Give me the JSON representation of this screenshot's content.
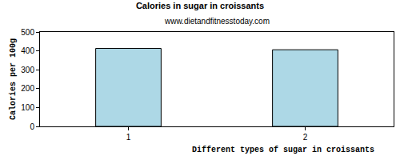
{
  "chart_data": {
    "type": "bar",
    "title": "Calories in sugar in croissants",
    "subtitle": "www.dietandfitnesstoday.com",
    "x_label": "Different types of sugar in croissants",
    "y_label": "Calories per 100g",
    "categories": [
      "1",
      "2"
    ],
    "values": [
      413,
      406
    ],
    "color": "#add8e6",
    "ylim": [
      0,
      500
    ],
    "yticks": [
      0,
      100,
      200,
      300,
      400,
      500
    ],
    "grid": false
  }
}
